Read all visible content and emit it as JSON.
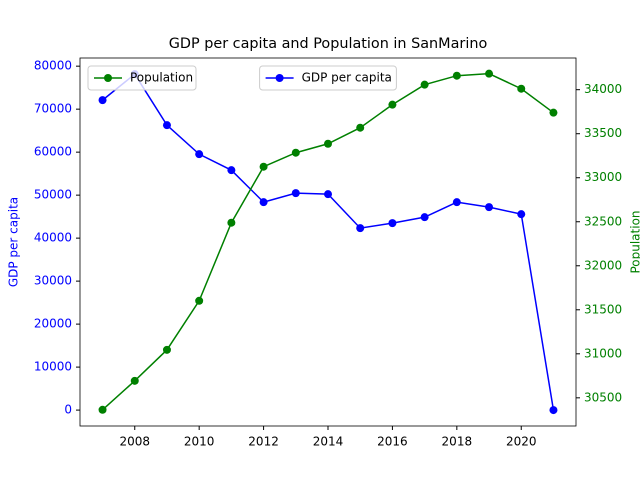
{
  "chart_data": {
    "type": "line",
    "title": "GDP per capita and Population in SanMarino",
    "x": [
      2007,
      2008,
      2009,
      2010,
      2011,
      2012,
      2013,
      2014,
      2015,
      2016,
      2017,
      2018,
      2019,
      2020,
      2021
    ],
    "xlim": [
      2006.3,
      2021.7
    ],
    "xticks": [
      2008,
      2010,
      2012,
      2014,
      2016,
      2018,
      2020
    ],
    "ylabel": "GDP per capita",
    "ylim": [
      -3700,
      81900
    ],
    "yticks": [
      0,
      10000,
      20000,
      30000,
      40000,
      50000,
      60000,
      70000,
      80000
    ],
    "ycolor": "#0000ff",
    "y2label": "Population",
    "y2lim": [
      30180,
      34360
    ],
    "y2ticks": [
      30500,
      31000,
      31500,
      32000,
      32500,
      33000,
      33500,
      34000
    ],
    "y2color": "#008000",
    "series": [
      {
        "name": "GDP per capita",
        "color": "#0000ff",
        "axis": "y",
        "legend": "upper center",
        "values": [
          72100,
          78140,
          66280,
          59530,
          55810,
          48370,
          50470,
          50230,
          42330,
          43490,
          44880,
          48370,
          47210,
          45580,
          0
        ]
      },
      {
        "name": "Population",
        "color": "#008000",
        "axis": "y2",
        "legend": "upper left",
        "values": [
          30364,
          30693,
          31045,
          31602,
          32489,
          33125,
          33284,
          33386,
          33568,
          33830,
          34057,
          34159,
          34182,
          34011,
          33739
        ]
      }
    ]
  }
}
